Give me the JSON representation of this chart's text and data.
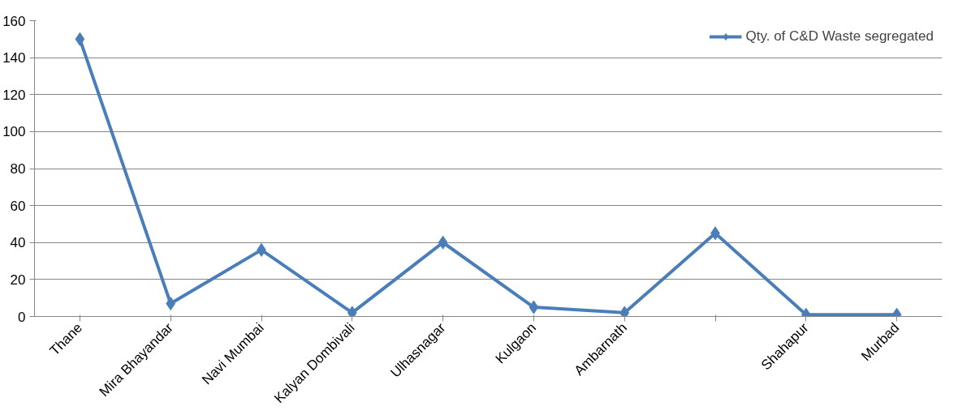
{
  "chart_data": {
    "type": "line",
    "categories": [
      "Thane",
      "Mira Bhayandar",
      "Navi Mumbai",
      "Kalyan Dombivali",
      "Ulhasnagar",
      "Kulgaon",
      "Ambarnath",
      null,
      "Shahapur",
      "Murbad"
    ],
    "series": [
      {
        "name": "Qty. of C&D Waste segregated",
        "color": "#4a7ebb",
        "values": [
          150,
          7,
          36,
          2,
          40,
          5,
          2,
          45,
          1,
          1
        ]
      }
    ],
    "ylim": [
      0,
      160
    ],
    "yticks": [
      0,
      20,
      40,
      60,
      80,
      100,
      120,
      140,
      160
    ],
    "grid": "y",
    "legend": "top right",
    "marker": "diamond",
    "line_style": "solid"
  }
}
